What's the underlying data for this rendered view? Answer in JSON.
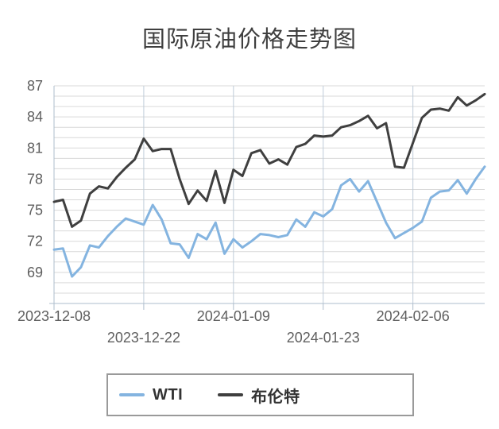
{
  "title": "国际原油价格走势图",
  "legend": {
    "items": [
      {
        "id": "wti",
        "label": "WTI",
        "color": "#84b4e0"
      },
      {
        "id": "brent",
        "label": "布伦特",
        "color": "#3f3f3f"
      }
    ]
  },
  "chart_data": {
    "type": "line",
    "title": "国际原油价格走势图",
    "x_count": 49,
    "x_ticks": [
      {
        "index": 0,
        "label": "2023-12-08",
        "row": 1
      },
      {
        "index": 10,
        "label": "2023-12-22",
        "row": 2
      },
      {
        "index": 20,
        "label": "2024-01-09",
        "row": 1
      },
      {
        "index": 30,
        "label": "2024-01-23",
        "row": 2
      },
      {
        "index": 40,
        "label": "2024-02-06",
        "row": 1
      }
    ],
    "ylim": [
      66,
      87
    ],
    "y_tick_labels": [
      69,
      72,
      75,
      78,
      81,
      84,
      87
    ],
    "grid_step": 1,
    "legend_position": "bottom",
    "colors": {
      "h_grid": "#d9d9d9",
      "v_grid": "#bfccd9",
      "axis": "#aebdcc",
      "label_text": "#5f5f5f"
    },
    "series": [
      {
        "name": "WTI",
        "color": "#84b4e0",
        "width": 3,
        "values": [
          71.2,
          71.3,
          68.6,
          69.5,
          71.6,
          71.4,
          72.5,
          73.4,
          74.2,
          73.9,
          73.6,
          75.5,
          74.1,
          71.8,
          71.7,
          70.4,
          72.7,
          72.2,
          73.8,
          70.8,
          72.2,
          71.4,
          72.0,
          72.7,
          72.6,
          72.4,
          72.6,
          74.1,
          73.4,
          74.8,
          74.4,
          75.1,
          77.4,
          78.0,
          76.8,
          77.8,
          75.8,
          73.8,
          72.3,
          72.8,
          73.3,
          73.9,
          76.2,
          76.8,
          76.9,
          77.9,
          76.6,
          78.0,
          79.2
        ]
      },
      {
        "name": "布伦特",
        "color": "#3f3f3f",
        "width": 3,
        "values": [
          75.8,
          76.0,
          73.4,
          74.0,
          76.6,
          77.3,
          77.1,
          78.2,
          79.1,
          79.9,
          81.9,
          80.7,
          80.9,
          80.9,
          78.0,
          75.6,
          76.9,
          75.9,
          78.8,
          75.7,
          78.9,
          78.3,
          80.5,
          80.8,
          79.5,
          79.9,
          79.4,
          81.1,
          81.4,
          82.2,
          82.1,
          82.2,
          83.0,
          83.2,
          83.6,
          84.1,
          82.9,
          83.4,
          79.2,
          79.1,
          81.5,
          83.9,
          84.7,
          84.8,
          84.6,
          85.9,
          85.1,
          85.6,
          86.2
        ]
      }
    ]
  }
}
